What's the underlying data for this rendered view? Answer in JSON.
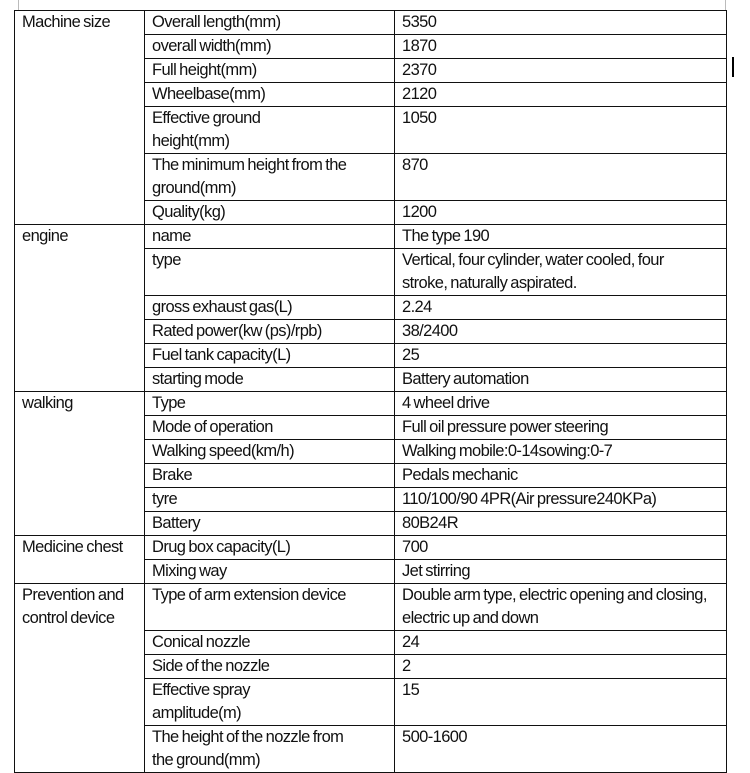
{
  "table": {
    "groups": [
      {
        "name": "Machine size",
        "rows": [
          [
            "Overall length(mm)",
            "5350"
          ],
          [
            "overall width(mm)",
            "1870"
          ],
          [
            "Full height(mm)",
            "2370"
          ],
          [
            "Wheelbase(mm)",
            "2120"
          ],
          [
            "Effective ground height(mm)",
            "1050"
          ],
          [
            "The minimum height from the ground(mm)",
            "870"
          ],
          [
            "Quality(kg)",
            "1200"
          ]
        ]
      },
      {
        "name": "engine",
        "rows": [
          [
            "name",
            "The type 190"
          ],
          [
            "type",
            "Vertical, four cylinder, water cooled, four stroke, naturally aspirated."
          ],
          [
            "gross exhaust gas(L)",
            "2.24"
          ],
          [
            "Rated power(kw (ps)/rpb)",
            "38/2400"
          ],
          [
            "Fuel tank capacity(L)",
            "25"
          ],
          [
            "starting mode",
            "Battery automation"
          ]
        ]
      },
      {
        "name": "walking",
        "rows": [
          [
            "Type",
            "4 wheel drive"
          ],
          [
            "Mode of operation",
            "Full oil pressure power steering"
          ],
          [
            "Walking speed(km/h)",
            "Walking mobile:0-14sowing:0-7"
          ],
          [
            "Brake",
            "Pedals mechanic"
          ],
          [
            "tyre",
            "110/100/90  4PR(Air pressure240KPa)"
          ],
          [
            "Battery",
            "80B24R"
          ]
        ]
      },
      {
        "name": "Medicine chest",
        "rows": [
          [
            "Drug box capacity(L)",
            "700"
          ],
          [
            "Mixing way",
            "Jet stirring"
          ]
        ]
      },
      {
        "name": "Prevention and control device",
        "rows": [
          [
            "Type of arm extension device",
            "Double arm type, electric opening and closing, electric up and down"
          ],
          [
            "Conical nozzle",
            "24"
          ],
          [
            "Side of the nozzle",
            "2"
          ],
          [
            "Effective spray amplitude(m)",
            "15"
          ],
          [
            "The height of the nozzle from the ground(mm)",
            "500-1600"
          ]
        ]
      }
    ]
  }
}
